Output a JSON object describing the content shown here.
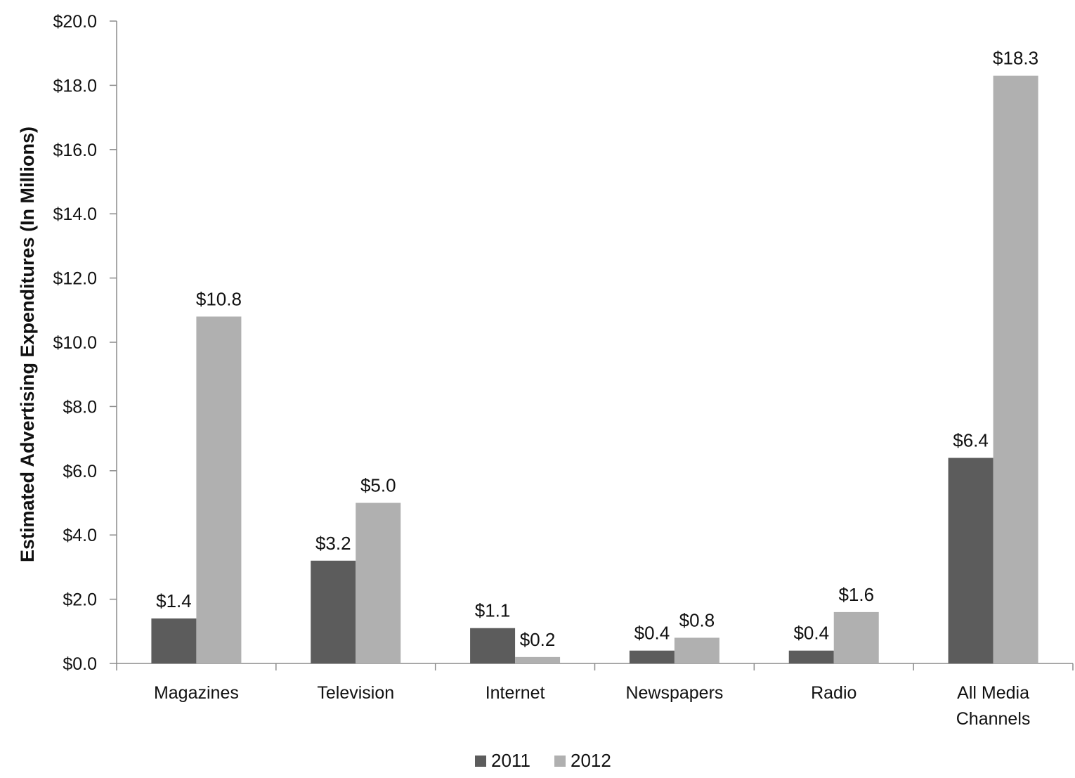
{
  "chart_data": {
    "type": "bar",
    "title": "",
    "xlabel": "",
    "ylabel": "Estimated Advertising Expenditures (In Millions)",
    "ylim": [
      0,
      20
    ],
    "yticks": [
      0,
      2,
      4,
      6,
      8,
      10,
      12,
      14,
      16,
      18,
      20
    ],
    "ytick_labels": [
      "$0.0",
      "$2.0",
      "$4.0",
      "$6.0",
      "$8.0",
      "$10.0",
      "$12.0",
      "$14.0",
      "$16.0",
      "$18.0",
      "$20.0"
    ],
    "categories": [
      [
        "Magazines"
      ],
      [
        "Television"
      ],
      [
        "Internet"
      ],
      [
        "Newspapers"
      ],
      [
        "Radio"
      ],
      [
        "All Media",
        "Channels"
      ]
    ],
    "series": [
      {
        "name": "2011",
        "color": "#5c5c5c",
        "values": [
          1.4,
          3.2,
          1.1,
          0.4,
          0.4,
          6.4
        ],
        "labels": [
          "$1.4",
          "$3.2",
          "$1.1",
          "$0.4",
          "$0.4",
          "$6.4"
        ]
      },
      {
        "name": "2012",
        "color": "#b0b0b0",
        "values": [
          10.8,
          5.0,
          0.2,
          0.8,
          1.6,
          18.3
        ],
        "labels": [
          "$10.8",
          "$5.0",
          "$0.2",
          "$0.8",
          "$1.6",
          "$18.3"
        ]
      }
    ],
    "grid": false,
    "legend_position": "bottom-center",
    "colors": {
      "axis": "#8c8c8c",
      "text": "#111111"
    }
  }
}
